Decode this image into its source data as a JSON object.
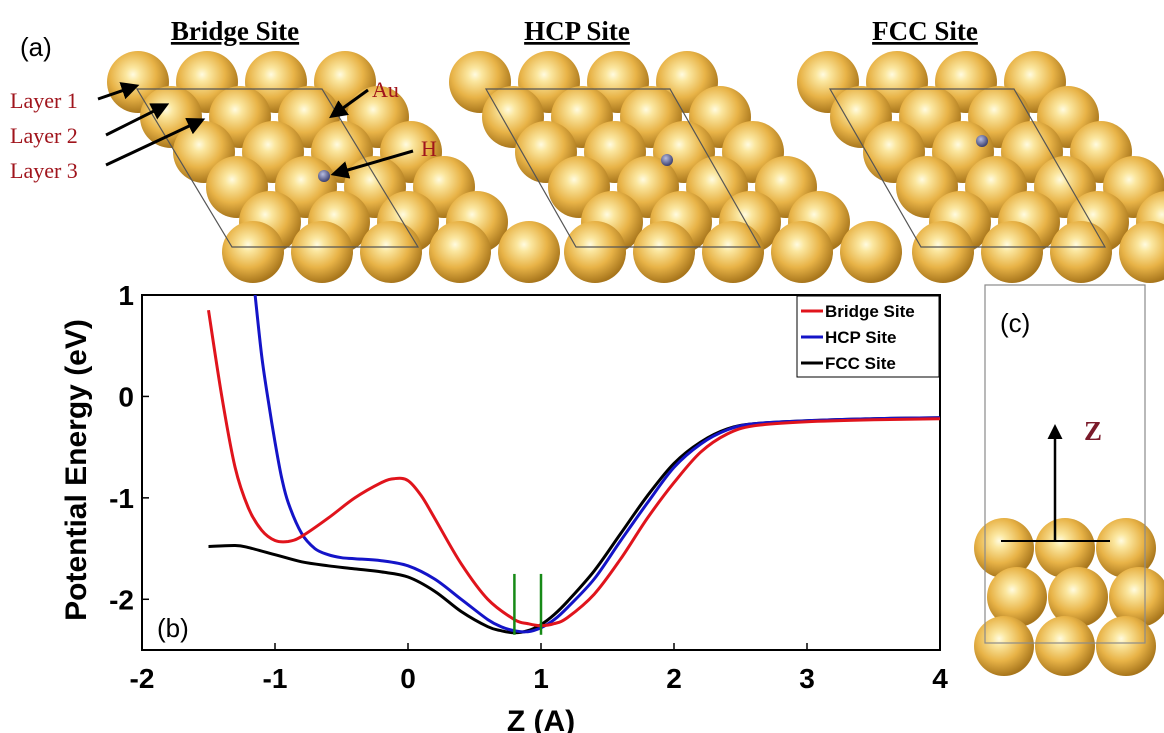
{
  "colors": {
    "gold_light": "#fbe7a0",
    "gold_mid": "#e8b347",
    "gold_dark": "#a8761c",
    "label_red": "#a0141c",
    "bridge": "#e0141c",
    "hcp": "#1414c8",
    "fcc": "#000000",
    "marker": "#178a17",
    "hydrogen": "#4a4f80"
  },
  "panel_a": {
    "label": "(a)",
    "titles": [
      "Bridge Site",
      "HCP Site",
      "FCC Site"
    ],
    "layer_labels": [
      "Layer 1",
      "Layer 2",
      "Layer 3"
    ],
    "atom_labels": {
      "au": "Au",
      "h": "H"
    }
  },
  "panel_b": {
    "label": "(b)"
  },
  "panel_c": {
    "label": "(c)",
    "axis_label": "Z"
  },
  "chart_data": {
    "type": "line",
    "xlabel": "Z (A)",
    "ylabel": "Potential Energy (eV)",
    "xlim": [
      -2,
      4
    ],
    "ylim": [
      -2.5,
      1
    ],
    "xticks": [
      -2,
      -1,
      0,
      1,
      2,
      3,
      4
    ],
    "yticks": [
      -2,
      -1,
      0,
      1
    ],
    "legend_position": "top-right",
    "markers_x": [
      0.8,
      1.0
    ],
    "markers_y": [
      -2.35,
      -1.75
    ],
    "series": [
      {
        "name": "Bridge Site",
        "x": [
          -1.5,
          -1.4,
          -1.3,
          -1.2,
          -1.1,
          -1.0,
          -0.9,
          -0.8,
          -0.6,
          -0.4,
          -0.2,
          -0.1,
          0.0,
          0.1,
          0.2,
          0.4,
          0.6,
          0.8,
          0.9,
          1.0,
          1.1,
          1.2,
          1.4,
          1.6,
          1.8,
          2.0,
          2.2,
          2.4,
          2.6,
          3.0,
          3.5,
          4.0
        ],
        "y": [
          0.85,
          0.0,
          -0.7,
          -1.1,
          -1.32,
          -1.42,
          -1.43,
          -1.38,
          -1.2,
          -1.0,
          -0.85,
          -0.81,
          -0.83,
          -0.98,
          -1.2,
          -1.65,
          -2.0,
          -2.2,
          -2.24,
          -2.26,
          -2.24,
          -2.18,
          -1.95,
          -1.6,
          -1.2,
          -0.85,
          -0.55,
          -0.37,
          -0.29,
          -0.25,
          -0.23,
          -0.22
        ]
      },
      {
        "name": "HCP Site",
        "x": [
          -1.15,
          -1.1,
          -1.05,
          -1.0,
          -0.95,
          -0.9,
          -0.8,
          -0.7,
          -0.6,
          -0.5,
          -0.4,
          -0.2,
          0.0,
          0.2,
          0.4,
          0.6,
          0.7,
          0.8,
          0.9,
          1.0,
          1.1,
          1.2,
          1.4,
          1.6,
          1.8,
          2.0,
          2.2,
          2.4,
          2.6,
          3.0,
          3.5,
          4.0
        ],
        "y": [
          1.0,
          0.4,
          -0.05,
          -0.45,
          -0.8,
          -1.05,
          -1.35,
          -1.5,
          -1.56,
          -1.59,
          -1.6,
          -1.62,
          -1.67,
          -1.8,
          -2.0,
          -2.2,
          -2.27,
          -2.31,
          -2.32,
          -2.28,
          -2.2,
          -2.08,
          -1.8,
          -1.42,
          -1.05,
          -0.7,
          -0.47,
          -0.33,
          -0.27,
          -0.24,
          -0.22,
          -0.21
        ]
      },
      {
        "name": "FCC Site",
        "x": [
          -1.5,
          -1.3,
          -1.2,
          -1.0,
          -0.8,
          -0.6,
          -0.4,
          -0.2,
          0.0,
          0.2,
          0.4,
          0.6,
          0.7,
          0.8,
          0.9,
          1.0,
          1.1,
          1.2,
          1.4,
          1.6,
          1.8,
          2.0,
          2.2,
          2.4,
          2.6,
          3.0,
          3.5,
          4.0
        ],
        "y": [
          -1.48,
          -1.47,
          -1.49,
          -1.56,
          -1.63,
          -1.67,
          -1.7,
          -1.73,
          -1.78,
          -1.92,
          -2.12,
          -2.27,
          -2.31,
          -2.33,
          -2.31,
          -2.25,
          -2.15,
          -2.02,
          -1.72,
          -1.35,
          -0.98,
          -0.66,
          -0.45,
          -0.32,
          -0.27,
          -0.24,
          -0.22,
          -0.21
        ]
      }
    ]
  }
}
